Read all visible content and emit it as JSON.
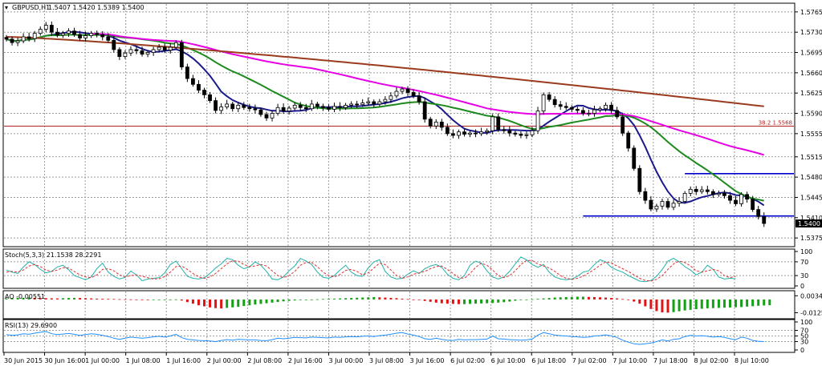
{
  "header": {
    "symbol_label": "GBPUSD,H1",
    "ohlc_label": "1.5407 1.5420 1.5389 1.5400"
  },
  "chart_data": [
    {
      "type": "candlestick",
      "symbol": "GBPUSD",
      "timeframe": "H1",
      "y_ticks": [
        "1.5765",
        "1.5730",
        "1.5695",
        "1.5660",
        "1.5625",
        "1.5590",
        "1.5555",
        "1.5515",
        "1.5480",
        "1.5445",
        "1.5410",
        "1.5375"
      ],
      "ylim": [
        1.536,
        1.578
      ],
      "x_tick_labels": [
        "30 Jun 2015",
        "30 Jun 16:00",
        "1 Jul 00:00",
        "1 Jul 08:00",
        "1 Jul 16:00",
        "2 Jul 00:00",
        "2 Jul 08:00",
        "2 Jul 16:00",
        "3 Jul 00:00",
        "3 Jul 08:00",
        "3 Jul 16:00",
        "6 Jul 02:00",
        "6 Jul 10:00",
        "6 Jul 18:00",
        "7 Jul 02:00",
        "7 Jul 10:00",
        "7 Jul 18:00",
        "8 Jul 02:00",
        "8 Jul 10:00"
      ],
      "current_price": "1.5400",
      "fib_level_label": "38.2 1.5568",
      "fib_level_value": 1.5568,
      "support_lines": [
        1.5486,
        1.5413
      ],
      "close": [
        1.5718,
        1.5712,
        1.5715,
        1.5722,
        1.5719,
        1.5728,
        1.5735,
        1.5742,
        1.573,
        1.5725,
        1.5728,
        1.5732,
        1.5726,
        1.572,
        1.5724,
        1.5728,
        1.5726,
        1.5722,
        1.5716,
        1.57,
        1.5688,
        1.5694,
        1.57,
        1.5698,
        1.5692,
        1.5695,
        1.57,
        1.5704,
        1.5699,
        1.5704,
        1.5712,
        1.567,
        1.565,
        1.564,
        1.563,
        1.5622,
        1.5612,
        1.5595,
        1.5601,
        1.5606,
        1.5598,
        1.5604,
        1.56,
        1.5598,
        1.5596,
        1.5588,
        1.5582,
        1.559,
        1.56,
        1.5594,
        1.5599,
        1.5604,
        1.56,
        1.5598,
        1.5606,
        1.5602,
        1.56,
        1.5597,
        1.5602,
        1.56,
        1.5604,
        1.5606,
        1.5605,
        1.5608,
        1.561,
        1.5606,
        1.561,
        1.5614,
        1.562,
        1.5628,
        1.5632,
        1.5626,
        1.562,
        1.561,
        1.558,
        1.5568,
        1.5575,
        1.5566,
        1.5555,
        1.5552,
        1.5558,
        1.5554,
        1.5556,
        1.5555,
        1.5558,
        1.556,
        1.5584,
        1.5562,
        1.556,
        1.5556,
        1.5554,
        1.5552,
        1.5553,
        1.556,
        1.5594,
        1.5622,
        1.5614,
        1.5605,
        1.5602,
        1.56,
        1.5597,
        1.5595,
        1.559,
        1.559,
        1.5596,
        1.5598,
        1.5604,
        1.5595,
        1.5584,
        1.5556,
        1.553,
        1.5495,
        1.5455,
        1.544,
        1.5425,
        1.543,
        1.5438,
        1.5428,
        1.5435,
        1.5438,
        1.5452,
        1.5459,
        1.5455,
        1.5458,
        1.5455,
        1.545,
        1.5452,
        1.5448,
        1.544,
        1.5434,
        1.545,
        1.5442,
        1.5424,
        1.5412,
        1.54
      ],
      "overlays": [
        {
          "name": "MA fast",
          "color": "#1a1a8c",
          "period": 8
        },
        {
          "name": "MA medium",
          "color": "#1e8a1e",
          "period": 21
        },
        {
          "name": "MA slow",
          "color": "#e600e6",
          "period": 55
        },
        {
          "name": "MA long",
          "color": "#9b3a1e",
          "period": 200
        }
      ]
    },
    {
      "type": "line",
      "title": "Stoch(5,3,3) 21.1538 28.2291",
      "y_ticks": [
        "100",
        "70",
        "30",
        "0"
      ],
      "ylim": [
        0,
        100
      ],
      "levels": [
        70,
        30
      ],
      "series": [
        {
          "color": "#20b2aa",
          "values": [
            46,
            40,
            36,
            55,
            70,
            62,
            48,
            38,
            42,
            55,
            60,
            47,
            30,
            24,
            18,
            26,
            50,
            66,
            40,
            28,
            20,
            25,
            43,
            32,
            15,
            20,
            22,
            24,
            38,
            62,
            72,
            50,
            28,
            22,
            20,
            24,
            36,
            52,
            64,
            80,
            76,
            60,
            50,
            55,
            70,
            60,
            42,
            20,
            18,
            26,
            44,
            58,
            80,
            72,
            62,
            40,
            25,
            22,
            30,
            46,
            60,
            40,
            30,
            28,
            52,
            70,
            76,
            42,
            26,
            20,
            22,
            34,
            44,
            36,
            50,
            58,
            62,
            54,
            34,
            22,
            18,
            30,
            60,
            72,
            66,
            44,
            26,
            20,
            26,
            42,
            64,
            84,
            76,
            62,
            54,
            62,
            40,
            26,
            20,
            18,
            20,
            28,
            40,
            44,
            62,
            76,
            70,
            54,
            46,
            40,
            30,
            22,
            14,
            12,
            16,
            28,
            48,
            72,
            80,
            70,
            56,
            46,
            32,
            40,
            60,
            48,
            26,
            20,
            22,
            21
          ]
        },
        {
          "color": "#e03030",
          "values": [
            40,
            42,
            40,
            46,
            58,
            62,
            56,
            46,
            42,
            46,
            53,
            52,
            42,
            32,
            26,
            24,
            32,
            48,
            50,
            44,
            32,
            26,
            30,
            32,
            28,
            24,
            20,
            21,
            27,
            40,
            56,
            58,
            48,
            36,
            26,
            22,
            26,
            36,
            50,
            64,
            73,
            72,
            62,
            56,
            58,
            62,
            58,
            44,
            30,
            24,
            30,
            42,
            60,
            68,
            68,
            56,
            40,
            30,
            26,
            33,
            45,
            48,
            42,
            32,
            38,
            52,
            66,
            62,
            46,
            30,
            22,
            26,
            34,
            38,
            42,
            50,
            56,
            58,
            48,
            36,
            24,
            22,
            36,
            54,
            66,
            60,
            46,
            30,
            24,
            30,
            44,
            62,
            74,
            74,
            64,
            58,
            52,
            42,
            30,
            22,
            19,
            22,
            28,
            38,
            48,
            60,
            70,
            66,
            58,
            50,
            42,
            32,
            22,
            16,
            14,
            19,
            30,
            48,
            64,
            72,
            68,
            58,
            44,
            40,
            44,
            48,
            44,
            30,
            24,
            28
          ]
        }
      ]
    },
    {
      "type": "bar",
      "title": "AO -0.00551",
      "y_ticks": [
        "0.00349",
        "-0.01258"
      ],
      "ylim": [
        -0.016,
        0.006
      ],
      "positive_color": "#16a016",
      "negative_color": "#e01414",
      "values": [
        0.001,
        0.0012,
        0.0015,
        0.0016,
        0.0018,
        0.0016,
        0.0014,
        0.0012,
        0.0011,
        0.001,
        0.0012,
        0.0014,
        0.0015,
        0.0014,
        0.0012,
        0.001,
        0.0008,
        0.0007,
        0.0006,
        0.0004,
        0.0003,
        0.0002,
        0.0001,
        -0.0001,
        -0.0002,
        -0.0003,
        -0.0002,
        -0.0002,
        -0.0001,
        0.0,
        0.0001,
        -0.001,
        -0.0025,
        -0.004,
        -0.0055,
        -0.0065,
        -0.0075,
        -0.0082,
        -0.0085,
        -0.008,
        -0.0075,
        -0.007,
        -0.0062,
        -0.0055,
        -0.0048,
        -0.0042,
        -0.0036,
        -0.003,
        -0.0024,
        -0.0018,
        -0.0013,
        -0.0009,
        -0.0005,
        -0.0002,
        0.0,
        0.0002,
        0.0004,
        0.0006,
        0.0008,
        0.001,
        0.0012,
        0.0014,
        0.0016,
        0.0018,
        0.002,
        0.0022,
        0.002,
        0.0018,
        0.0015,
        0.0012,
        0.0008,
        0.0004,
        0.0,
        -0.0006,
        -0.0014,
        -0.0022,
        -0.003,
        -0.0036,
        -0.004,
        -0.0042,
        -0.0044,
        -0.0044,
        -0.0042,
        -0.004,
        -0.0038,
        -0.0036,
        -0.0034,
        -0.003,
        -0.0026,
        -0.002,
        -0.0012,
        -0.0006,
        -0.0002,
        0.0002,
        0.0006,
        0.001,
        0.0014,
        0.0018,
        0.002,
        0.0022,
        0.0024,
        0.0026,
        0.0026,
        0.0024,
        0.0022,
        0.002,
        0.0018,
        0.0014,
        0.001,
        0.0004,
        -0.0006,
        -0.002,
        -0.004,
        -0.0065,
        -0.009,
        -0.011,
        -0.0122,
        -0.0125,
        -0.012,
        -0.0112,
        -0.0104,
        -0.0098,
        -0.0092,
        -0.0088,
        -0.0084,
        -0.0082,
        -0.008,
        -0.0078,
        -0.0076,
        -0.0074,
        -0.0072,
        -0.0068,
        -0.0064,
        -0.006,
        -0.0057,
        -0.0055
      ]
    },
    {
      "type": "line",
      "title": "RSI(13) 29.6900",
      "y_ticks": [
        "100",
        "70",
        "50",
        "30",
        "0"
      ],
      "ylim": [
        0,
        100
      ],
      "levels": [
        70,
        50,
        30
      ],
      "series": [
        {
          "color": "#1e90ff",
          "values": [
            55,
            52,
            54,
            58,
            56,
            60,
            63,
            66,
            58,
            55,
            57,
            59,
            56,
            52,
            55,
            58,
            56,
            52,
            48,
            42,
            38,
            42,
            46,
            44,
            42,
            44,
            47,
            49,
            46,
            50,
            56,
            44,
            38,
            36,
            34,
            33,
            32,
            30,
            34,
            37,
            35,
            38,
            37,
            36,
            36,
            34,
            33,
            37,
            42,
            40,
            42,
            45,
            44,
            43,
            46,
            45,
            44,
            43,
            46,
            45,
            47,
            48,
            47,
            49,
            50,
            48,
            51,
            53,
            56,
            60,
            62,
            57,
            53,
            48,
            40,
            38,
            42,
            38,
            35,
            34,
            38,
            36,
            37,
            37,
            38,
            39,
            50,
            40,
            39,
            37,
            36,
            35,
            36,
            39,
            53,
            62,
            58,
            53,
            51,
            50,
            48,
            47,
            45,
            46,
            50,
            51,
            54,
            50,
            45,
            35,
            28,
            22,
            20,
            22,
            25,
            30,
            36,
            32,
            38,
            40,
            48,
            52,
            50,
            51,
            49,
            46,
            48,
            45,
            40,
            37,
            46,
            42,
            34,
            31,
            29.7
          ]
        }
      ]
    }
  ]
}
